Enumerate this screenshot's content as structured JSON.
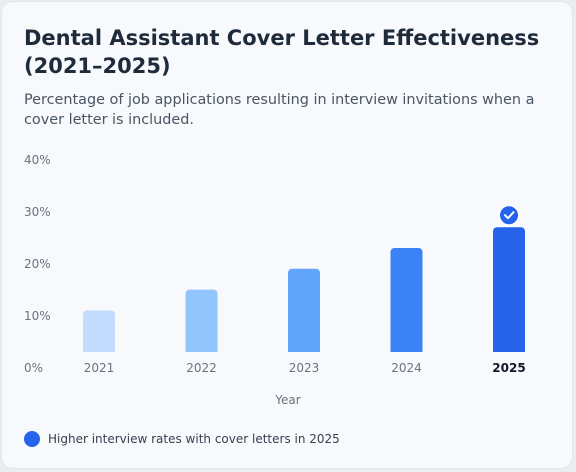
{
  "title": "Dental Assistant Cover Letter Effectiveness (2021–2025)",
  "subtitle": "Percentage of job applications resulting in interview invitations when a cover letter is included.",
  "legend_label": "Higher interview rates with cover letters in 2025",
  "colors": {
    "bars": [
      "#c3dcfd",
      "#93c5fd",
      "#60a5fa",
      "#3b82f6",
      "#2563eb"
    ],
    "highlight": "#2563eb"
  },
  "highlight_icon": "check-icon",
  "chart_data": {
    "type": "bar",
    "categories": [
      "2021",
      "2022",
      "2023",
      "2024",
      "2025"
    ],
    "values": [
      8,
      12,
      16,
      20,
      24
    ],
    "xlabel": "Year",
    "ylabel": "",
    "ylim": [
      0,
      40
    ],
    "yticks": [
      "0%",
      "10%",
      "20%",
      "30%",
      "40%"
    ],
    "highlight": "2025",
    "grid": false,
    "legend": "bottom-left"
  }
}
